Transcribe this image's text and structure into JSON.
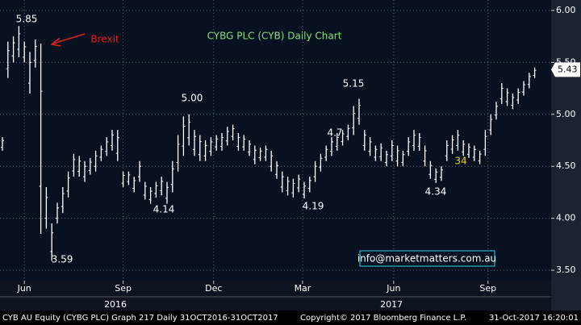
{
  "chart_data": {
    "type": "ohlc",
    "title": "CYBG PLC (CYB) Daily Chart",
    "color": "#ffffff",
    "xlim": [
      -0.44,
      100
    ],
    "ylim": [
      3.4,
      6.1
    ],
    "yticks": [
      {
        "value": 3.5,
        "label": "3.50"
      },
      {
        "value": 4,
        "label": "4.00"
      },
      {
        "value": 4.5,
        "label": "4.50"
      },
      {
        "value": 5,
        "label": "5.00"
      },
      {
        "value": 5.5,
        "label": "5.50"
      },
      {
        "value": 6,
        "label": "6.00"
      }
    ],
    "xticks": [
      {
        "value": 4,
        "label": "Jun"
      },
      {
        "value": 22,
        "label": "Sep"
      },
      {
        "value": 38.5,
        "label": "Dec"
      },
      {
        "value": 54.7,
        "label": "Mar"
      },
      {
        "value": 71.3,
        "label": "Jun"
      },
      {
        "value": 88.5,
        "label": "Sep"
      }
    ],
    "year_ticks": [
      {
        "value": 20.6,
        "label": "2016"
      },
      {
        "value": 70.9,
        "label": "2017"
      }
    ],
    "grid": true,
    "high": [
      4.78,
      5.7,
      5.75,
      5.85,
      5.7,
      5.6,
      5.72,
      5.68,
      4.3,
      3.95,
      4.15,
      4.3,
      4.45,
      4.62,
      4.6,
      4.55,
      4.58,
      4.65,
      4.7,
      4.78,
      4.85,
      4.85,
      4.45,
      4.45,
      4.4,
      4.55,
      4.35,
      4.3,
      4.35,
      4.4,
      4.35,
      4.55,
      4.8,
      4.98,
      5.0,
      4.85,
      4.8,
      4.75,
      4.78,
      4.8,
      4.82,
      4.88,
      4.9,
      4.82,
      4.8,
      4.75,
      4.7,
      4.68,
      4.7,
      4.65,
      4.55,
      4.45,
      4.4,
      4.38,
      4.42,
      4.35,
      4.4,
      4.55,
      4.62,
      4.7,
      4.78,
      4.82,
      4.85,
      4.9,
      5.08,
      5.15,
      4.85,
      4.78,
      4.7,
      4.72,
      4.65,
      4.75,
      4.7,
      4.65,
      4.78,
      4.85,
      4.82,
      4.7,
      4.55,
      4.48,
      4.5,
      4.75,
      4.8,
      4.85,
      4.75,
      4.72,
      4.7,
      4.65,
      4.85,
      5.0,
      5.12,
      5.3,
      5.25,
      5.2,
      5.25,
      5.32,
      5.4,
      5.45
    ],
    "low": [
      4.65,
      5.35,
      5.5,
      5.55,
      5.5,
      5.2,
      5.45,
      3.85,
      3.9,
      3.59,
      3.95,
      4.05,
      4.2,
      4.4,
      4.4,
      4.35,
      4.42,
      4.45,
      4.55,
      4.6,
      4.65,
      4.55,
      4.3,
      4.32,
      4.25,
      4.35,
      4.18,
      4.14,
      4.2,
      4.22,
      4.14,
      4.25,
      4.45,
      4.6,
      4.7,
      4.6,
      4.55,
      4.55,
      4.6,
      4.65,
      4.65,
      4.7,
      4.75,
      4.65,
      4.65,
      4.6,
      4.52,
      4.55,
      4.55,
      4.45,
      4.38,
      4.25,
      4.22,
      4.2,
      4.25,
      4.19,
      4.25,
      4.35,
      4.45,
      4.55,
      4.6,
      4.65,
      4.7,
      4.75,
      4.8,
      4.9,
      4.65,
      4.6,
      4.55,
      4.55,
      4.5,
      4.55,
      4.5,
      4.5,
      4.6,
      4.65,
      4.65,
      4.5,
      4.38,
      4.34,
      4.36,
      4.55,
      4.62,
      4.65,
      4.6,
      4.58,
      4.55,
      4.52,
      4.6,
      4.8,
      4.95,
      5.1,
      5.08,
      5.05,
      5.1,
      5.18,
      5.25,
      5.35
    ],
    "last_price": 5.43,
    "annotations": [
      "5.85",
      "3.59",
      "4.14",
      "5.00",
      "4.19",
      "5.15",
      "4.34",
      "4.7",
      "34",
      "Brexit"
    ],
    "watermark": "info@marketmatters.com.au",
    "footer": {
      "left": "CYB AU Equity (CYBG PLC) Graph 217  Daily 31OCT2016-31OCT2017",
      "center": "Copyright© 2017 Bloomberg Finance L.P.",
      "right": "31-Oct-2017 16:20:01"
    }
  }
}
